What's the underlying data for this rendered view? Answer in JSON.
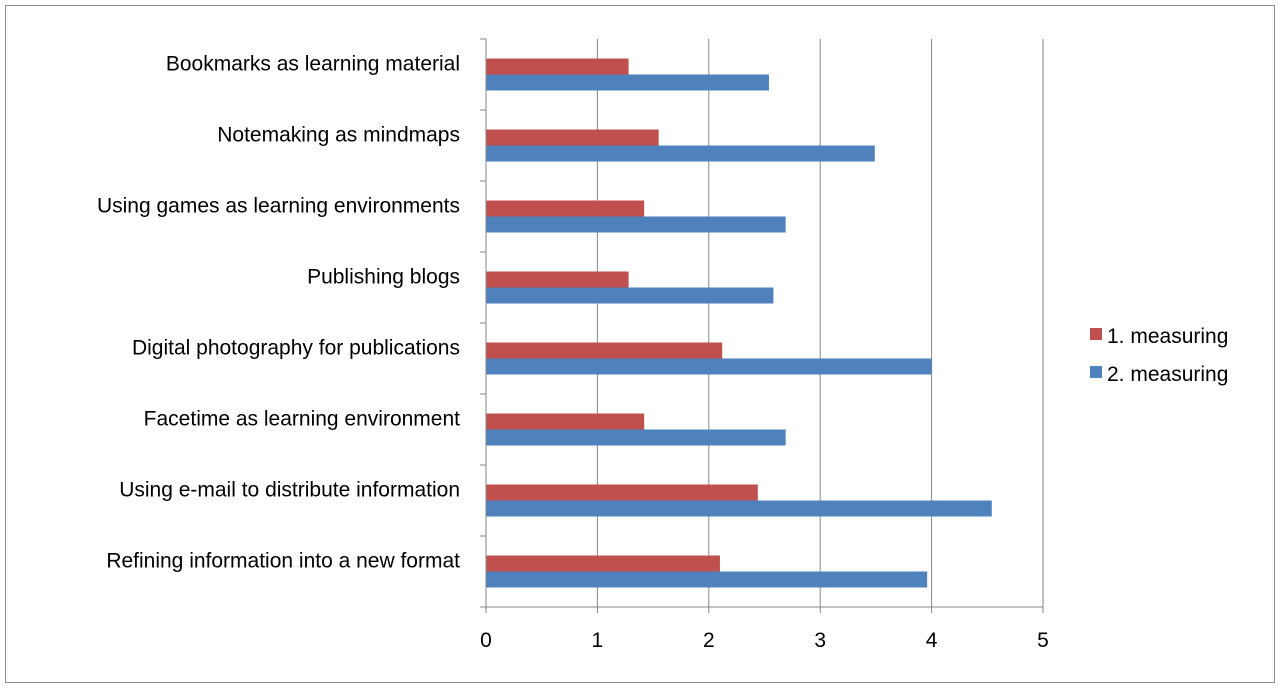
{
  "chart_data": {
    "type": "bar",
    "orientation": "horizontal",
    "categories": [
      "Bookmarks as learning material",
      "Notemaking as mindmaps",
      "Using games as learning environments",
      "Publishing blogs",
      "Digital photography for publications",
      "Facetime as learning environment",
      "Using e-mail to distribute information",
      "Refining information into a new format"
    ],
    "series": [
      {
        "name": "1. measuring",
        "color": "#c0504d",
        "values": [
          1.28,
          1.55,
          1.42,
          1.28,
          2.12,
          1.42,
          2.44,
          2.1
        ]
      },
      {
        "name": "2. measuring",
        "color": "#4f81bd",
        "values": [
          2.54,
          3.49,
          2.69,
          2.58,
          4.0,
          2.69,
          4.54,
          3.96
        ]
      }
    ],
    "title": "",
    "xlabel": "",
    "ylabel": "",
    "xlim": [
      0,
      5
    ],
    "ticks": [
      "0",
      "1",
      "2",
      "3",
      "4",
      "5"
    ],
    "grid": true,
    "legend_position": "right"
  }
}
